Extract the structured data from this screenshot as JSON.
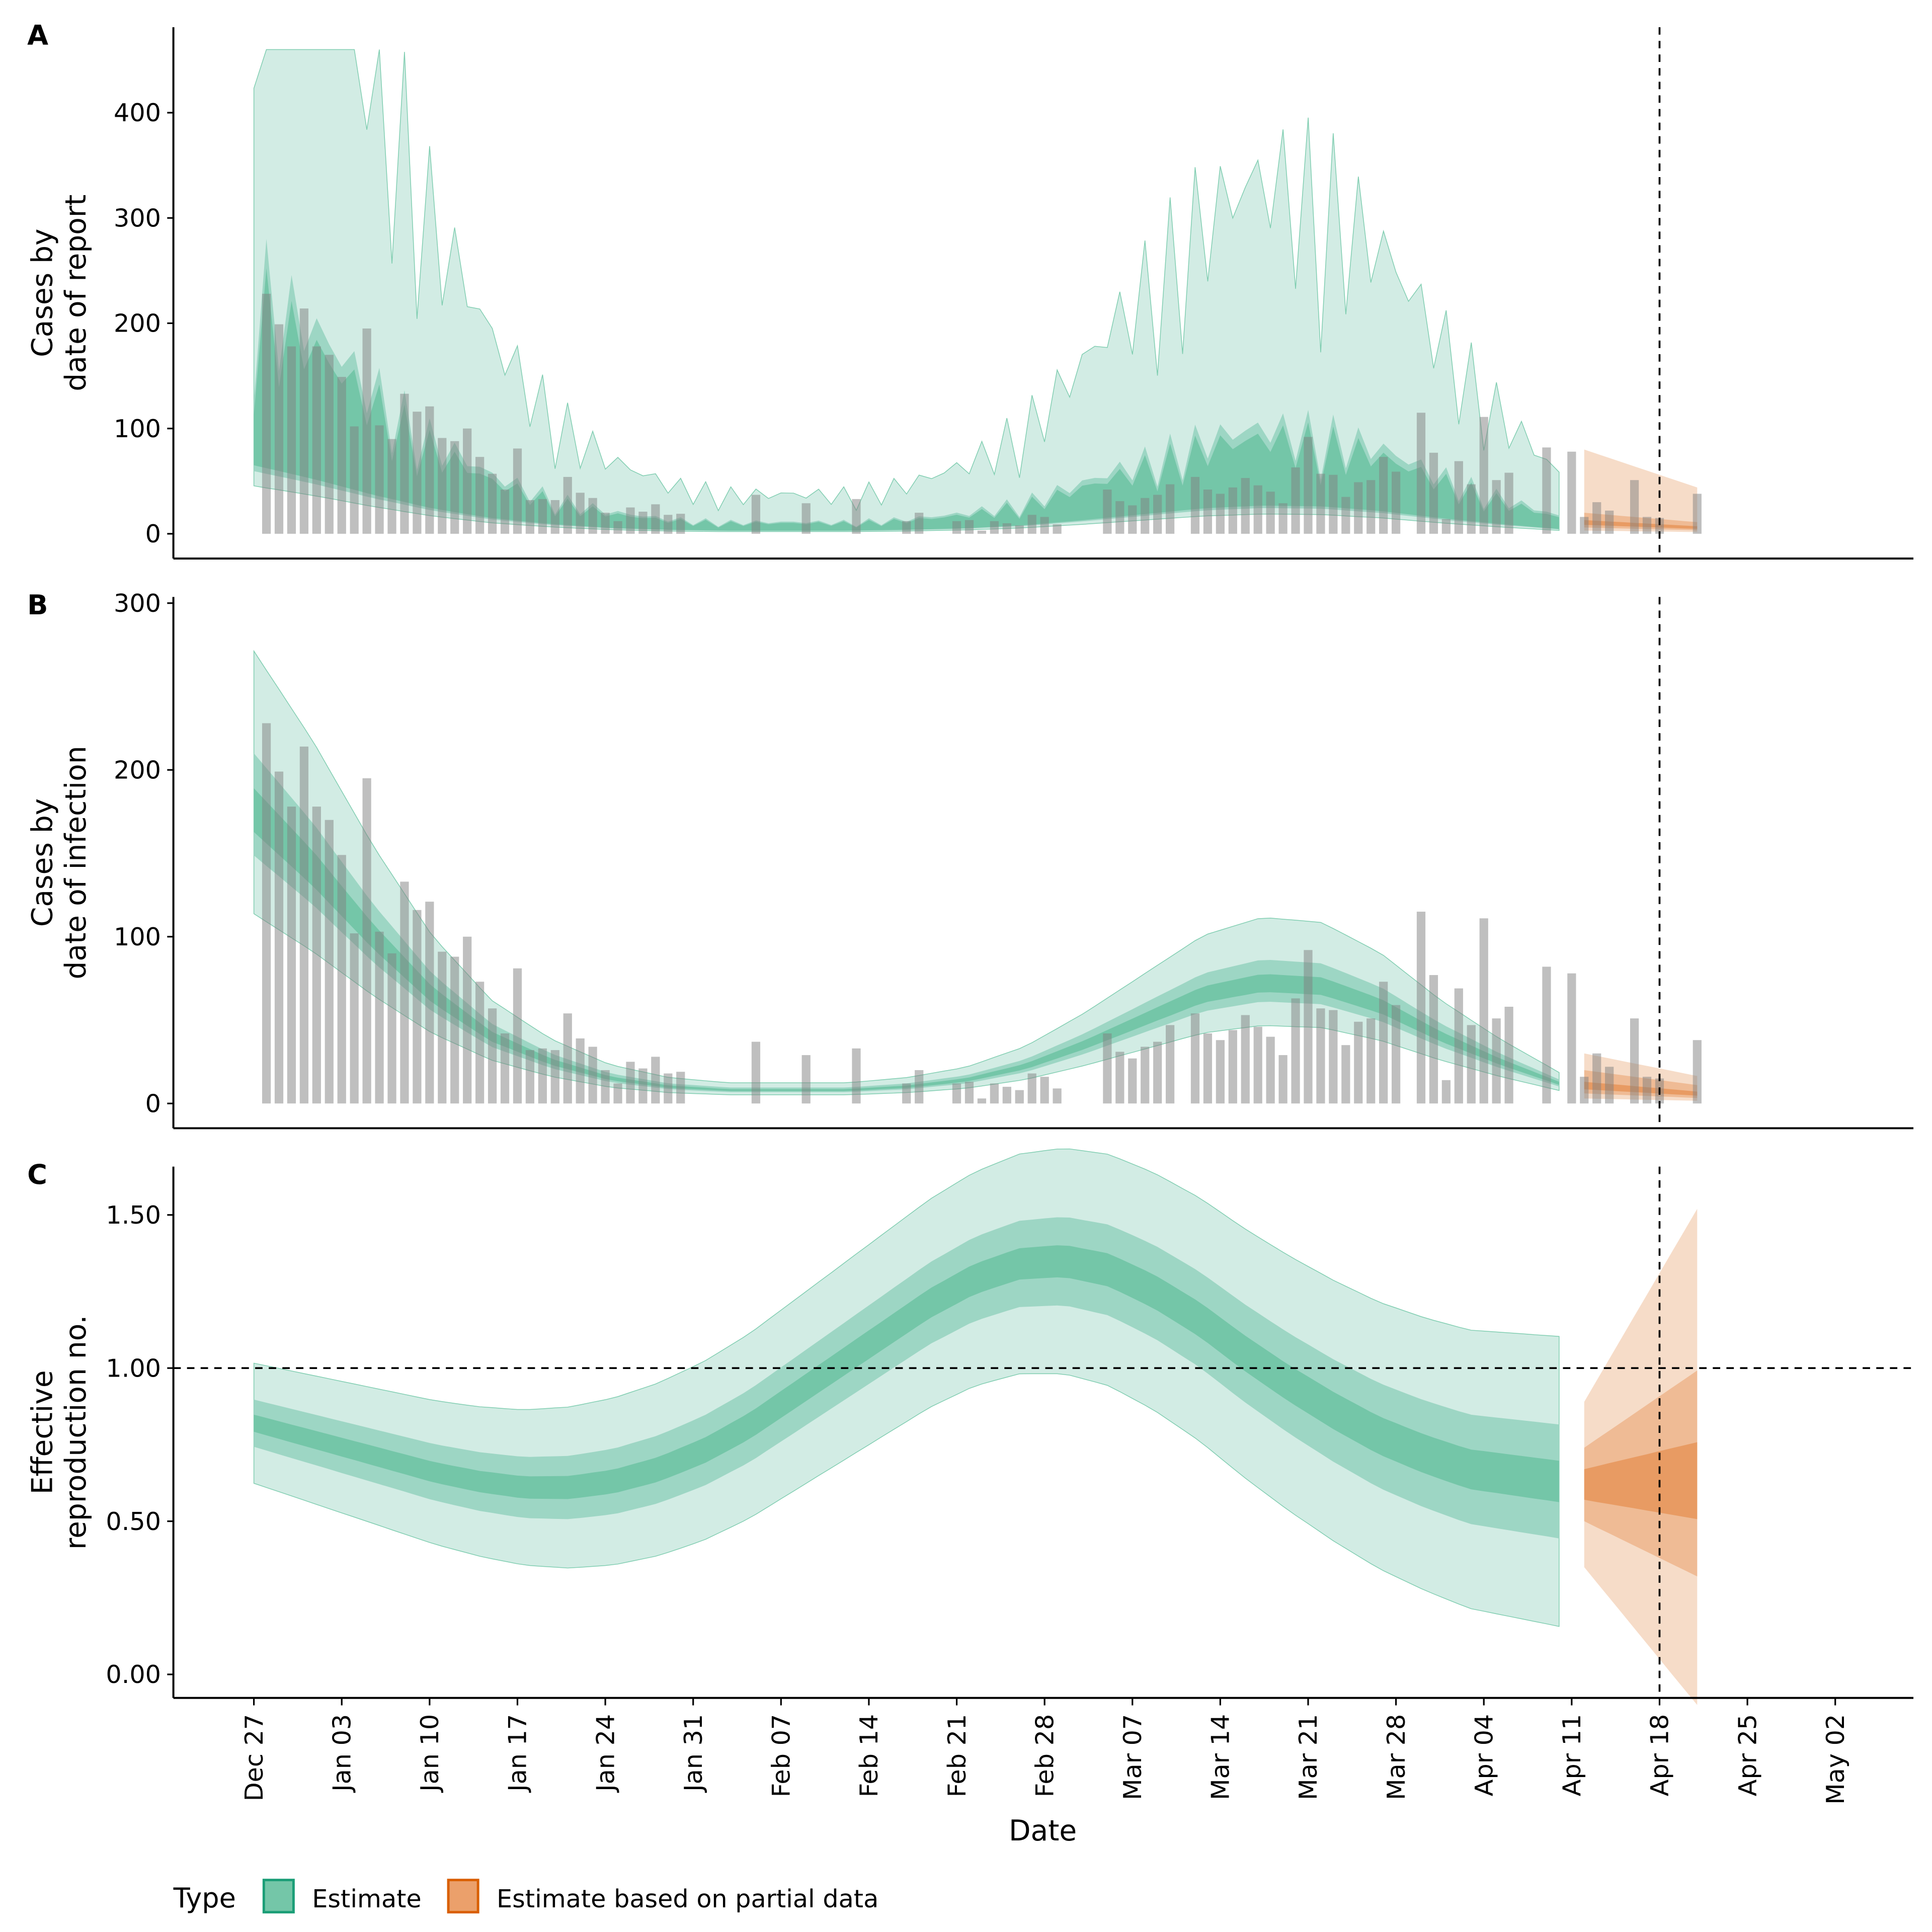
{
  "chart_data": [
    {
      "panel_label": "A",
      "type": "area",
      "ylabel": "Cases by\ndate of report",
      "ylim": [
        0,
        460
      ],
      "yticks": [
        0,
        100,
        200,
        300,
        400
      ],
      "bands": "estimate 90/50/20 credible intervals (green), partial-data estimate (orange)",
      "observed": "reported cases bars"
    },
    {
      "panel_label": "B",
      "type": "area",
      "ylabel": "Cases by\ndate of infection",
      "ylim": [
        0,
        300
      ],
      "yticks": [
        0,
        100,
        200,
        300
      ]
    },
    {
      "panel_label": "C",
      "type": "area",
      "ylabel": "Effective\nreproduction no.",
      "ylim": [
        0,
        1.65
      ],
      "yticks": [
        "0.00",
        "0.50",
        "1.00",
        "1.50"
      ],
      "reference_line": 1.0
    }
  ],
  "x_axis": {
    "label": "Date",
    "ticks": [
      "Dec 27",
      "Jan 03",
      "Jan 10",
      "Jan 17",
      "Jan 24",
      "Jan 31",
      "Feb 07",
      "Feb 14",
      "Feb 21",
      "Feb 28",
      "Mar 07",
      "Mar 14",
      "Mar 21",
      "Mar 28",
      "Apr 04",
      "Apr 11",
      "Apr 18",
      "Apr 25",
      "May 02"
    ],
    "forecast_date_line": "Apr 18"
  },
  "observed_cases": [
    228,
    199,
    178,
    214,
    178,
    170,
    149,
    102,
    195,
    103,
    90,
    133,
    116,
    121,
    91,
    88,
    100,
    73,
    57,
    42,
    81,
    32,
    33,
    32,
    54,
    39,
    34,
    20,
    12,
    25,
    21,
    28,
    18,
    19,
    0,
    0,
    0,
    0,
    0,
    37,
    0,
    0,
    0,
    29,
    0,
    0,
    0,
    33,
    0,
    0,
    0,
    12,
    20,
    0,
    0,
    12,
    13,
    3,
    12,
    10,
    8,
    18,
    16,
    9,
    0,
    0,
    0,
    42,
    31,
    27,
    34,
    37,
    47,
    0,
    54,
    42,
    38,
    44,
    53,
    46,
    40,
    29,
    63,
    92,
    57,
    56,
    35,
    49,
    51,
    73,
    59,
    0,
    115,
    77,
    14,
    69,
    47,
    111,
    51,
    58,
    0,
    0,
    82,
    0,
    78,
    16,
    30,
    22,
    0,
    51,
    16,
    15,
    0,
    0,
    38
  ],
  "rt": {
    "median_points": [
      0.82,
      0.78,
      0.74,
      0.7,
      0.66,
      0.63,
      0.61,
      0.61,
      0.63,
      0.67,
      0.73,
      0.81,
      0.91,
      1.01,
      1.11,
      1.21,
      1.29,
      1.34,
      1.35,
      1.32,
      1.25,
      1.16,
      1.05,
      0.95,
      0.86,
      0.78,
      0.72,
      0.67,
      0.65,
      0.63
    ],
    "partial_median": [
      0.63,
      0.62,
      0.61,
      0.61
    ]
  },
  "legend": {
    "title": "Type",
    "items": [
      {
        "label": "Estimate",
        "color": "#1b9e77"
      },
      {
        "label": "Estimate based on partial data",
        "color": "#d95f02"
      }
    ]
  },
  "colors": {
    "estimate": "#1b9e77",
    "partial": "#d95f02",
    "bars": "#808080"
  }
}
